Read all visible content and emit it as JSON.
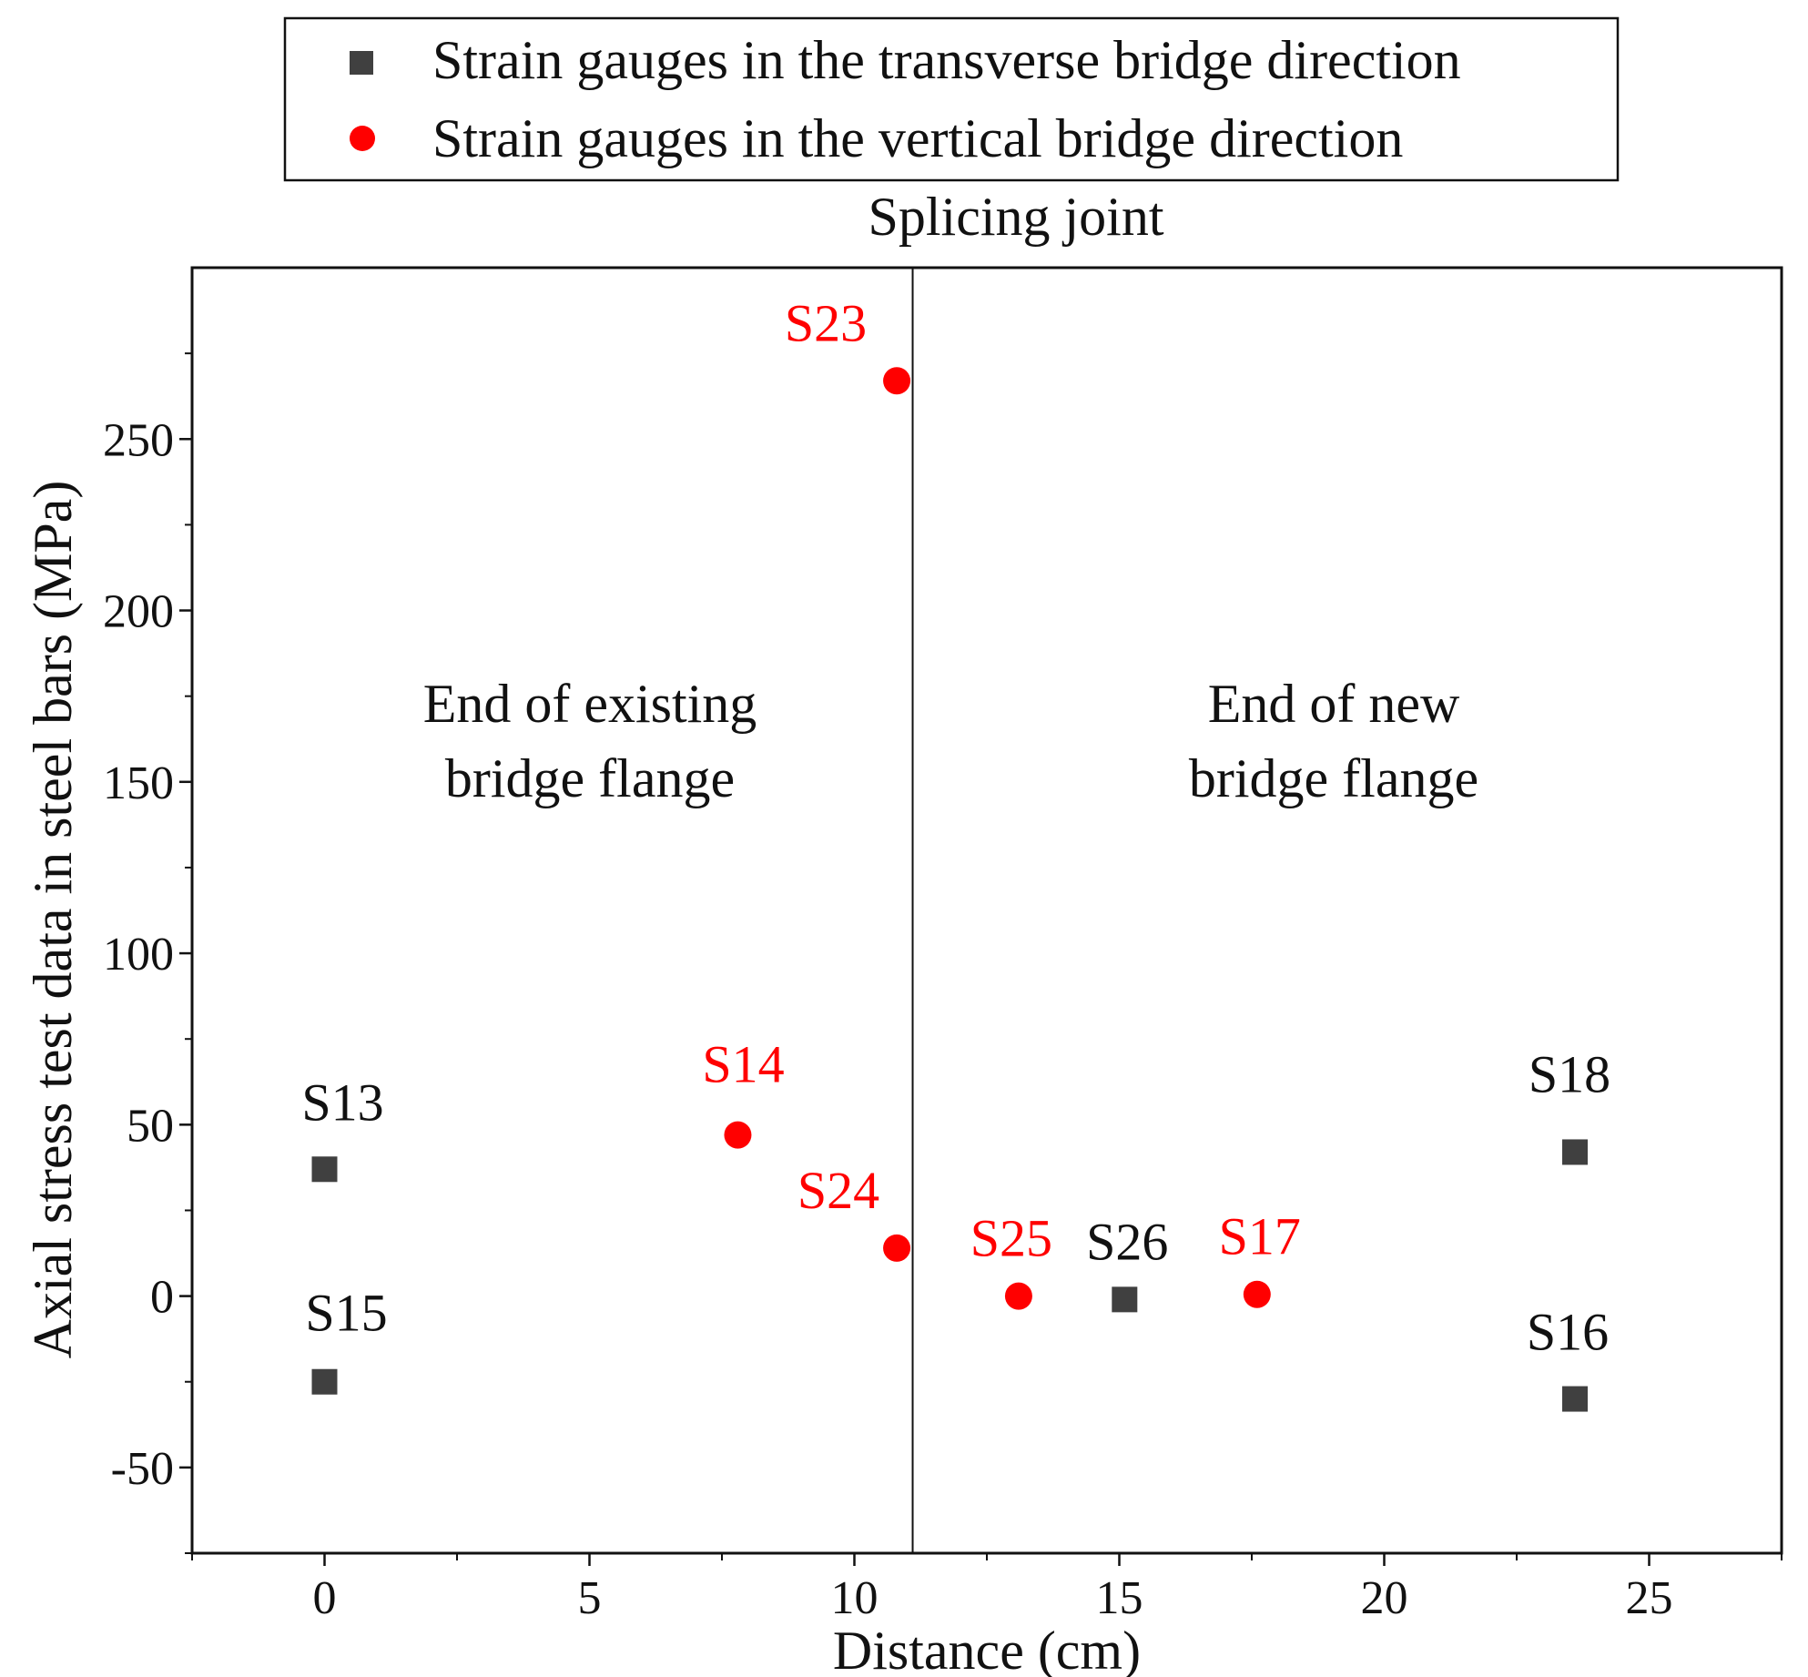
{
  "chart_data": {
    "type": "scatter",
    "xlabel": "Distance (cm)",
    "ylabel": "Axial stress test data in steel bars (MPa)",
    "xlim": [
      -2.5,
      27.5
    ],
    "ylim": [
      -75,
      300
    ],
    "x_ticks": [
      0,
      5,
      10,
      15,
      20,
      25
    ],
    "y_ticks": [
      -50,
      0,
      50,
      100,
      150,
      200,
      250
    ],
    "x_tick_labels": [
      "0",
      "5",
      "10",
      "15",
      "20",
      "25"
    ],
    "y_tick_labels": [
      "-50",
      "0",
      "50",
      "100",
      "150",
      "200",
      "250"
    ],
    "grid": false,
    "legend_position": "top-center",
    "splice": {
      "x": 11.1,
      "label": "Splicing joint"
    },
    "regions": {
      "left": {
        "line1": "End of existing",
        "line2": "bridge flange"
      },
      "right": {
        "line1": "End of new",
        "line2": "bridge flange"
      }
    },
    "series": [
      {
        "name": "Strain gauges in the transverse bridge direction",
        "marker": "square",
        "color": "#404040",
        "points": [
          {
            "label": "S13",
            "x": 0,
            "y": 37
          },
          {
            "label": "S15",
            "x": 0,
            "y": -25
          },
          {
            "label": "S26",
            "x": 15.1,
            "y": -1
          },
          {
            "label": "S18",
            "x": 23.6,
            "y": 42
          },
          {
            "label": "S16",
            "x": 23.6,
            "y": -30
          }
        ]
      },
      {
        "name": "Strain gauges in the vertical bridge direction",
        "marker": "circle",
        "color": "#ff0000",
        "points": [
          {
            "label": "S23",
            "x": 10.8,
            "y": 267
          },
          {
            "label": "S14",
            "x": 7.8,
            "y": 47
          },
          {
            "label": "S24",
            "x": 10.8,
            "y": 14
          },
          {
            "label": "S25",
            "x": 13.1,
            "y": 0
          },
          {
            "label": "S17",
            "x": 17.6,
            "y": 0.5
          }
        ]
      }
    ]
  }
}
